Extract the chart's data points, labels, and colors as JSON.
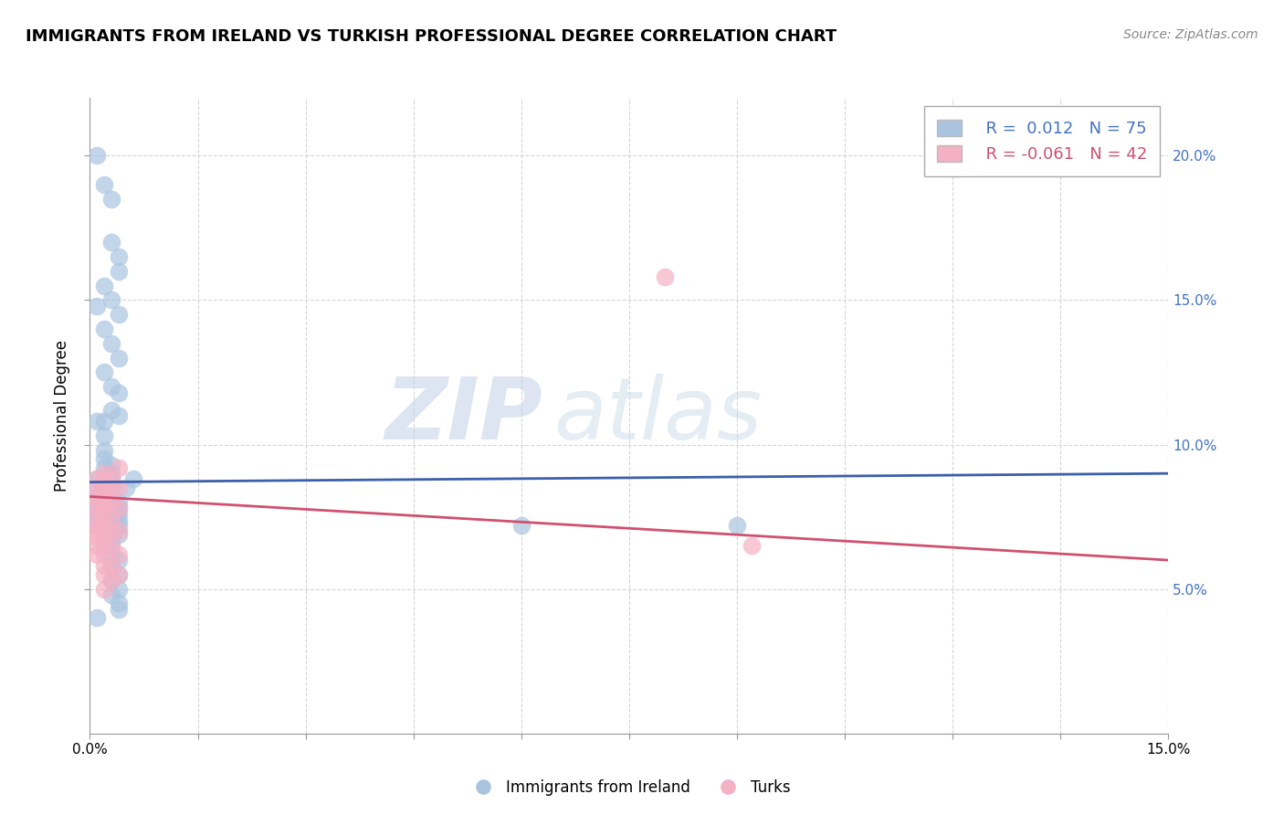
{
  "title": "IMMIGRANTS FROM IRELAND VS TURKISH PROFESSIONAL DEGREE CORRELATION CHART",
  "source": "Source: ZipAtlas.com",
  "xlabel_label": "Immigrants from Ireland",
  "ylabel_label": "Professional Degree",
  "xlim": [
    0.0,
    0.15
  ],
  "ylim": [
    0.0,
    0.22
  ],
  "xticks": [
    0.0,
    0.015,
    0.03,
    0.045,
    0.06,
    0.075,
    0.09,
    0.105,
    0.12,
    0.135,
    0.15
  ],
  "yticks": [
    0.05,
    0.1,
    0.15,
    0.2
  ],
  "legend_blue_r": "0.012",
  "legend_blue_n": "75",
  "legend_pink_r": "-0.061",
  "legend_pink_n": "42",
  "blue_color": "#aac4e0",
  "pink_color": "#f4b0c4",
  "blue_line_color": "#3b5faa",
  "pink_line_color": "#d05070",
  "watermark_zip": "ZIP",
  "watermark_atlas": "atlas",
  "blue_scatter": [
    [
      0.001,
      0.2
    ],
    [
      0.002,
      0.19
    ],
    [
      0.003,
      0.185
    ],
    [
      0.003,
      0.17
    ],
    [
      0.004,
      0.165
    ],
    [
      0.004,
      0.16
    ],
    [
      0.002,
      0.155
    ],
    [
      0.003,
      0.15
    ],
    [
      0.004,
      0.145
    ],
    [
      0.002,
      0.14
    ],
    [
      0.003,
      0.135
    ],
    [
      0.004,
      0.13
    ],
    [
      0.002,
      0.125
    ],
    [
      0.003,
      0.12
    ],
    [
      0.004,
      0.118
    ],
    [
      0.003,
      0.112
    ],
    [
      0.004,
      0.11
    ],
    [
      0.002,
      0.108
    ],
    [
      0.001,
      0.148
    ],
    [
      0.001,
      0.108
    ],
    [
      0.002,
      0.103
    ],
    [
      0.002,
      0.098
    ],
    [
      0.002,
      0.095
    ],
    [
      0.003,
      0.093
    ],
    [
      0.002,
      0.092
    ],
    [
      0.003,
      0.09
    ],
    [
      0.003,
      0.088
    ],
    [
      0.001,
      0.088
    ],
    [
      0.002,
      0.087
    ],
    [
      0.002,
      0.086
    ],
    [
      0.001,
      0.085
    ],
    [
      0.002,
      0.084
    ],
    [
      0.003,
      0.083
    ],
    [
      0.001,
      0.082
    ],
    [
      0.002,
      0.082
    ],
    [
      0.003,
      0.082
    ],
    [
      0.002,
      0.08
    ],
    [
      0.003,
      0.08
    ],
    [
      0.004,
      0.08
    ],
    [
      0.001,
      0.079
    ],
    [
      0.002,
      0.079
    ],
    [
      0.003,
      0.079
    ],
    [
      0.001,
      0.078
    ],
    [
      0.002,
      0.078
    ],
    [
      0.003,
      0.078
    ],
    [
      0.004,
      0.078
    ],
    [
      0.002,
      0.076
    ],
    [
      0.003,
      0.076
    ],
    [
      0.004,
      0.076
    ],
    [
      0.001,
      0.075
    ],
    [
      0.002,
      0.075
    ],
    [
      0.003,
      0.075
    ],
    [
      0.004,
      0.074
    ],
    [
      0.001,
      0.073
    ],
    [
      0.002,
      0.073
    ],
    [
      0.003,
      0.072
    ],
    [
      0.004,
      0.072
    ],
    [
      0.002,
      0.07
    ],
    [
      0.003,
      0.07
    ],
    [
      0.004,
      0.069
    ],
    [
      0.002,
      0.068
    ],
    [
      0.003,
      0.068
    ],
    [
      0.003,
      0.065
    ],
    [
      0.003,
      0.062
    ],
    [
      0.004,
      0.06
    ],
    [
      0.003,
      0.058
    ],
    [
      0.004,
      0.055
    ],
    [
      0.003,
      0.053
    ],
    [
      0.004,
      0.05
    ],
    [
      0.003,
      0.048
    ],
    [
      0.004,
      0.045
    ],
    [
      0.004,
      0.043
    ],
    [
      0.06,
      0.072
    ],
    [
      0.09,
      0.072
    ],
    [
      0.001,
      0.04
    ],
    [
      0.005,
      0.085
    ],
    [
      0.006,
      0.088
    ]
  ],
  "pink_scatter": [
    [
      0.001,
      0.088
    ],
    [
      0.001,
      0.085
    ],
    [
      0.001,
      0.082
    ],
    [
      0.001,
      0.08
    ],
    [
      0.001,
      0.078
    ],
    [
      0.001,
      0.075
    ],
    [
      0.001,
      0.072
    ],
    [
      0.001,
      0.07
    ],
    [
      0.001,
      0.068
    ],
    [
      0.001,
      0.065
    ],
    [
      0.001,
      0.062
    ],
    [
      0.002,
      0.09
    ],
    [
      0.002,
      0.088
    ],
    [
      0.002,
      0.085
    ],
    [
      0.002,
      0.082
    ],
    [
      0.002,
      0.08
    ],
    [
      0.002,
      0.078
    ],
    [
      0.002,
      0.075
    ],
    [
      0.002,
      0.072
    ],
    [
      0.002,
      0.07
    ],
    [
      0.002,
      0.068
    ],
    [
      0.002,
      0.065
    ],
    [
      0.002,
      0.062
    ],
    [
      0.002,
      0.058
    ],
    [
      0.002,
      0.055
    ],
    [
      0.002,
      0.05
    ],
    [
      0.003,
      0.088
    ],
    [
      0.003,
      0.085
    ],
    [
      0.003,
      0.08
    ],
    [
      0.003,
      0.075
    ],
    [
      0.003,
      0.07
    ],
    [
      0.003,
      0.065
    ],
    [
      0.003,
      0.058
    ],
    [
      0.003,
      0.053
    ],
    [
      0.004,
      0.092
    ],
    [
      0.004,
      0.085
    ],
    [
      0.004,
      0.078
    ],
    [
      0.004,
      0.07
    ],
    [
      0.004,
      0.062
    ],
    [
      0.004,
      0.055
    ],
    [
      0.08,
      0.158
    ],
    [
      0.092,
      0.065
    ]
  ],
  "blue_line_x": [
    0.0,
    0.15
  ],
  "blue_line_y": [
    0.087,
    0.09
  ],
  "pink_line_x": [
    0.0,
    0.15
  ],
  "pink_line_y": [
    0.082,
    0.06
  ]
}
